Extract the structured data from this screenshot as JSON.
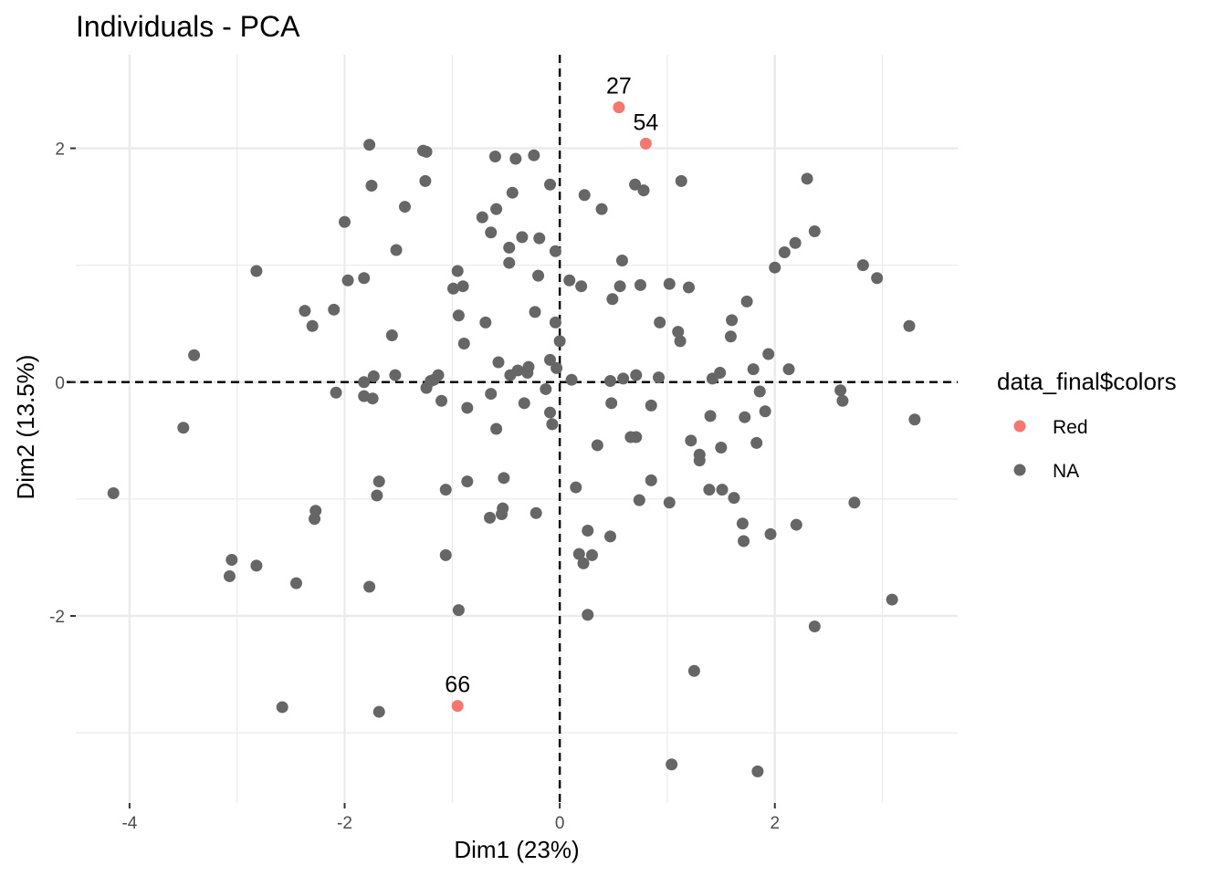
{
  "chart_data": {
    "type": "scatter",
    "title": "Individuals - PCA",
    "xlabel": "Dim1 (23%)",
    "ylabel": "Dim2 (13.5%)",
    "xlim": [
      -4.5,
      3.7
    ],
    "ylim": [
      -3.6,
      2.8
    ],
    "x_ticks": [
      -4,
      -2,
      0,
      2
    ],
    "x_tick_labels": [
      "-4",
      "-2",
      "0",
      "2"
    ],
    "y_ticks": [
      -2,
      0,
      2
    ],
    "y_tick_labels": [
      "-2",
      "0",
      "2"
    ],
    "grid": true,
    "reference_lines": {
      "x": 0,
      "y": 0,
      "style": "dashed"
    },
    "legend": {
      "title": "data_final$colors",
      "position": "right",
      "entries": [
        {
          "label": "Red",
          "color": "#F8766D"
        },
        {
          "label": "NA",
          "color": "#666666"
        }
      ]
    },
    "series": [
      {
        "name": "Red",
        "color": "#F8766D",
        "points": [
          {
            "x": 0.55,
            "y": 2.35,
            "label": "27"
          },
          {
            "x": 0.8,
            "y": 2.04,
            "label": "54"
          },
          {
            "x": -0.95,
            "y": -2.77,
            "label": "66"
          }
        ]
      },
      {
        "name": "NA",
        "color": "#666666",
        "points": [
          [
            -4.15,
            -0.95
          ],
          [
            -3.5,
            -0.39
          ],
          [
            -3.4,
            0.23
          ],
          [
            -3.05,
            -1.52
          ],
          [
            -3.07,
            -1.66
          ],
          [
            -2.82,
            0.95
          ],
          [
            -2.82,
            -1.57
          ],
          [
            -2.58,
            -2.78
          ],
          [
            -2.45,
            -1.72
          ],
          [
            -2.37,
            0.61
          ],
          [
            -2.3,
            0.48
          ],
          [
            -2.27,
            -1.1
          ],
          [
            -2.28,
            -1.17
          ],
          [
            -2.1,
            0.62
          ],
          [
            -2.08,
            -0.09
          ],
          [
            -2.0,
            1.37
          ],
          [
            -1.97,
            0.87
          ],
          [
            -1.82,
            0.89
          ],
          [
            -1.82,
            0.0
          ],
          [
            -1.82,
            -0.12
          ],
          [
            -1.77,
            2.03
          ],
          [
            -1.77,
            -1.75
          ],
          [
            -1.75,
            1.68
          ],
          [
            -1.73,
            0.05
          ],
          [
            -1.74,
            -0.14
          ],
          [
            -1.7,
            -0.97
          ],
          [
            -1.68,
            -0.85
          ],
          [
            -1.68,
            -2.82
          ],
          [
            -1.56,
            0.4
          ],
          [
            -1.53,
            0.06
          ],
          [
            -1.52,
            1.13
          ],
          [
            -1.44,
            1.5
          ],
          [
            -1.27,
            1.98
          ],
          [
            -1.24,
            1.97
          ],
          [
            -1.25,
            1.72
          ],
          [
            -1.24,
            -0.05
          ],
          [
            -1.2,
            0.01
          ],
          [
            -1.17,
            0.02
          ],
          [
            -1.13,
            0.06
          ],
          [
            -1.1,
            -0.16
          ],
          [
            -1.06,
            -0.92
          ],
          [
            -1.06,
            -1.48
          ],
          [
            -0.99,
            0.8
          ],
          [
            -0.95,
            0.95
          ],
          [
            -0.94,
            0.57
          ],
          [
            -0.94,
            -1.95
          ],
          [
            -0.9,
            0.82
          ],
          [
            -0.89,
            0.33
          ],
          [
            -0.86,
            -0.85
          ],
          [
            -0.86,
            -0.22
          ],
          [
            -0.72,
            1.41
          ],
          [
            -0.69,
            0.51
          ],
          [
            -0.65,
            -1.16
          ],
          [
            -0.64,
            1.28
          ],
          [
            -0.64,
            -0.1
          ],
          [
            -0.6,
            1.93
          ],
          [
            -0.59,
            1.48
          ],
          [
            -0.59,
            -0.4
          ],
          [
            -0.57,
            0.17
          ],
          [
            -0.54,
            -1.13
          ],
          [
            -0.53,
            -1.08
          ],
          [
            -0.52,
            -0.82
          ],
          [
            -0.47,
            1.15
          ],
          [
            -0.47,
            1.02
          ],
          [
            -0.46,
            0.06
          ],
          [
            -0.44,
            1.62
          ],
          [
            -0.41,
            1.91
          ],
          [
            -0.39,
            0.1
          ],
          [
            -0.35,
            1.24
          ],
          [
            -0.33,
            -0.18
          ],
          [
            -0.3,
            0.08
          ],
          [
            -0.29,
            0.13
          ],
          [
            -0.24,
            1.94
          ],
          [
            -0.23,
            0.6
          ],
          [
            -0.22,
            -1.12
          ],
          [
            -0.2,
            0.91
          ],
          [
            -0.19,
            1.23
          ],
          [
            -0.13,
            -0.06
          ],
          [
            -0.09,
            1.69
          ],
          [
            -0.09,
            0.19
          ],
          [
            -0.09,
            -0.26
          ],
          [
            -0.07,
            -0.36
          ],
          [
            -0.04,
            1.12
          ],
          [
            -0.04,
            0.51
          ],
          [
            -0.03,
            0.12
          ],
          [
            0.0,
            0.35
          ],
          [
            0.09,
            0.87
          ],
          [
            0.11,
            0.02
          ],
          [
            0.15,
            -0.9
          ],
          [
            0.18,
            -1.47
          ],
          [
            0.2,
            0.82
          ],
          [
            0.22,
            -1.55
          ],
          [
            0.23,
            1.6
          ],
          [
            0.26,
            -1.27
          ],
          [
            0.26,
            -1.99
          ],
          [
            0.3,
            -1.48
          ],
          [
            0.35,
            -0.54
          ],
          [
            0.39,
            1.48
          ],
          [
            0.47,
            -1.32
          ],
          [
            0.47,
            0.01
          ],
          [
            0.48,
            -0.18
          ],
          [
            0.49,
            0.71
          ],
          [
            0.56,
            0.82
          ],
          [
            0.58,
            1.04
          ],
          [
            0.59,
            0.03
          ],
          [
            0.66,
            -0.47
          ],
          [
            0.7,
            1.69
          ],
          [
            0.71,
            -0.47
          ],
          [
            0.71,
            0.06
          ],
          [
            0.74,
            -1.01
          ],
          [
            0.75,
            0.83
          ],
          [
            0.78,
            1.64
          ],
          [
            0.85,
            -0.84
          ],
          [
            0.85,
            -0.2
          ],
          [
            0.92,
            0.04
          ],
          [
            0.93,
            0.51
          ],
          [
            1.02,
            0.84
          ],
          [
            1.02,
            -1.03
          ],
          [
            1.04,
            -3.27
          ],
          [
            1.1,
            0.43
          ],
          [
            1.12,
            0.35
          ],
          [
            1.13,
            1.72
          ],
          [
            1.2,
            0.81
          ],
          [
            1.22,
            -0.5
          ],
          [
            1.25,
            -2.47
          ],
          [
            1.3,
            -0.62
          ],
          [
            1.3,
            -0.67
          ],
          [
            1.39,
            -0.92
          ],
          [
            1.4,
            -0.29
          ],
          [
            1.42,
            0.03
          ],
          [
            1.49,
            0.08
          ],
          [
            1.5,
            -0.56
          ],
          [
            1.51,
            -0.92
          ],
          [
            1.59,
            0.39
          ],
          [
            1.6,
            0.53
          ],
          [
            1.62,
            -0.99
          ],
          [
            1.7,
            -1.21
          ],
          [
            1.71,
            -1.36
          ],
          [
            1.72,
            -0.3
          ],
          [
            1.74,
            0.69
          ],
          [
            1.8,
            0.11
          ],
          [
            1.83,
            -0.52
          ],
          [
            1.84,
            -3.33
          ],
          [
            1.86,
            -0.08
          ],
          [
            1.91,
            -0.25
          ],
          [
            1.94,
            0.24
          ],
          [
            1.96,
            -1.3
          ],
          [
            2.0,
            0.98
          ],
          [
            2.09,
            1.11
          ],
          [
            2.13,
            0.11
          ],
          [
            2.19,
            1.19
          ],
          [
            2.2,
            -1.22
          ],
          [
            2.3,
            1.74
          ],
          [
            2.37,
            1.29
          ],
          [
            2.37,
            -2.09
          ],
          [
            2.61,
            -0.07
          ],
          [
            2.63,
            -0.16
          ],
          [
            2.74,
            -1.03
          ],
          [
            2.82,
            1.0
          ],
          [
            2.95,
            0.89
          ],
          [
            3.09,
            -1.86
          ],
          [
            3.25,
            0.48
          ],
          [
            3.3,
            -0.32
          ]
        ]
      }
    ]
  }
}
